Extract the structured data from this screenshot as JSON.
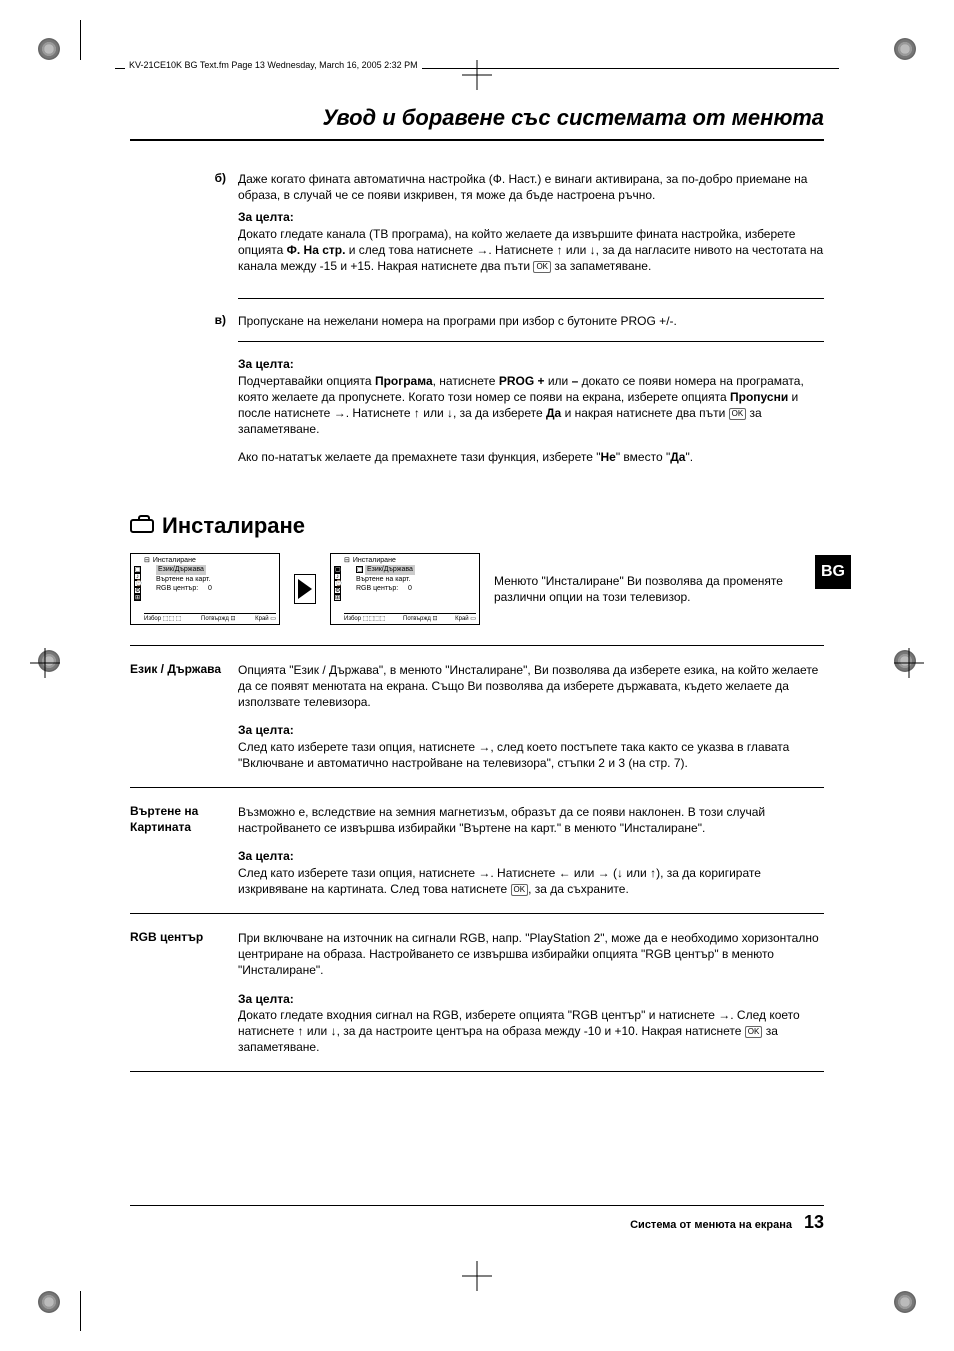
{
  "docinfo": "KV-21CE10K BG Text.fm  Page 13  Wednesday, March 16, 2005  2:32 PM",
  "page_title": "Увод и боравене със системата от менюта",
  "item_b": {
    "label": "б)",
    "text": "Даже когато фината автоматична настройка (Ф. Наст.) е винаги активирана, за по-добро приемане на образа, в случай че се появи изкривен, тя може да бъде настроена ръчно."
  },
  "goal1_label": "За целта:",
  "goal1_p1a": "Докато гледате канала (ТВ програма), на който желаете да извършите фината настройка, изберете опцията ",
  "goal1_bold1": "Ф. На стр.",
  "goal1_p1b": " и след това натиснете ",
  "arrow_right": "→",
  "goal1_p1c": ". Натиснете ",
  "arrow_up": "↑",
  "goal1_p1d": " или ",
  "arrow_down": "↓",
  "goal1_p1e": ", за да нагласите нивото на честотата на канала между -15 и +15. Накрая натиснете два пъти ",
  "ok": "OK",
  "goal1_p1f": " за запаметяване.",
  "item_c": {
    "label": "в)",
    "text": "Пропускане на нежелани номера на програми при избор с бутоните PROG +/-."
  },
  "goal2_label": "За целта:",
  "goal2_a": "Подчертавайки опцията ",
  "goal2_b1": "Програма",
  "goal2_b": ", натиснете ",
  "goal2_b2": "PROG +",
  "goal2_c": " или ",
  "goal2_b3": "–",
  "goal2_d": " докато се появи номера на програмата, която желаете да пропуснете. Когато този номер се появи на екрана, изберете опцията ",
  "goal2_b4": "Пропусни",
  "goal2_e": " и после натиснете ",
  "goal2_f": ". Натиснете ",
  "goal2_g": " или ",
  "goal2_h": ", за да изберете ",
  "goal2_b5": "Да",
  "goal2_i": " и накрая натиснете два пъти ",
  "goal2_j": " за запаметяване.",
  "goal2_note_a": "Ако по-нататък желаете да премахнете тази функция, изберете \"",
  "goal2_note_b1": "Не",
  "goal2_note_b": "\" вместо \"",
  "goal2_note_b2": "Да",
  "goal2_note_c": "\".",
  "section_title": "Инсталиране",
  "menu": {
    "title": "Инсталиране",
    "item1": "Език/Държава",
    "item2": "Въртене на карт.",
    "item3": "RGB център:",
    "val3": "0",
    "f1": "Избор",
    "f2": "Потвържд",
    "f3": "Край"
  },
  "menu_intro": "Менюто \"Инсталиране\" Ви позволява да променяте различни опции на този телевизор.",
  "lang_tab": "BG",
  "opt1": {
    "label": "Език / Държава",
    "p1": "Опцията \"Език / Държава\", в менюто \"Инсталиране\", Ви позволява да изберете езика, на който желаете да се появят менютата на екрана. Също Ви позволява да изберете държавата, където желаете да използвате телевизора.",
    "g": "За целта:",
    "p2a": "След като изберете тази опция, натиснете ",
    "p2b": ", след което постъпете така както се указва в главата \"Включване и автоматично настройване на телевизора\", стъпки 2 и 3 (на стр. 7)."
  },
  "opt2": {
    "label": "Въртене на Картината",
    "p1": "Възможно е, вследствие на земния магнетизъм, образът да се появи наклонен. В този случай настройването се извършва избирайки \"Въртене на карт.\" в менюто \"Инсталиране\".",
    "g": "За целта:",
    "p2a": "След като изберете тази опция, натиснете ",
    "p2b": ". Натиснете ",
    "p2c": " или ",
    "p2d": " (",
    "p2e": " или ",
    "p2f": "), за да коригирате изкривяване на картината. След това натиснете ",
    "p2g": ", за да съхраните."
  },
  "opt3": {
    "label": "RGB център",
    "p1": "При включване на източник на сигнали RGB, напр. \"PlayStation 2\", може да е необходимо хоризонтално центриране на образа. Настройването се извършва избирайки опцията \"RGB център\" в менюто \"Инсталиране\".",
    "g": "За целта:",
    "p2a": "Докато гледате входния сигнал на RGB, изберете опцията \"RGB център\" и натиснете ",
    "p2b": ". След което натиснете ",
    "p2c": " или ",
    "p2d": ", за да настроите центъра на образа между -10 и +10. Накрая натиснете ",
    "p2e": " за запаметяване."
  },
  "footer_text": "Система от менюта на екрана",
  "page_num": "13"
}
